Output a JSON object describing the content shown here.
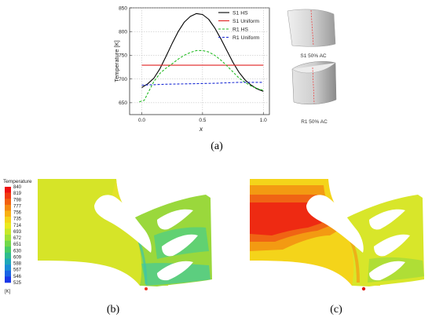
{
  "chart_data": {
    "type": "line",
    "xlabel": "x",
    "ylabel": "Temperature [K]",
    "xlim": [
      -0.1,
      1.05
    ],
    "ylim": [
      625,
      850
    ],
    "xticks": [
      "0.0",
      "0.5",
      "1.0"
    ],
    "yticks": [
      "650",
      "700",
      "750",
      "800",
      "850"
    ],
    "grid": true,
    "legend_position": "top-right",
    "series": [
      {
        "name": "S1 HS",
        "color": "#000000",
        "dash": "solid",
        "x": [
          0.0,
          0.05,
          0.1,
          0.15,
          0.2,
          0.25,
          0.3,
          0.35,
          0.4,
          0.45,
          0.5,
          0.55,
          0.6,
          0.65,
          0.7,
          0.75,
          0.8,
          0.85,
          0.9,
          0.95,
          1.0
        ],
        "y": [
          682,
          690,
          702,
          722,
          748,
          775,
          800,
          820,
          832,
          838,
          836,
          826,
          808,
          785,
          760,
          735,
          714,
          698,
          687,
          679,
          674
        ]
      },
      {
        "name": "S1 Uniform",
        "color": "#e02020",
        "dash": "solid",
        "x": [
          0.0,
          1.0
        ],
        "y": [
          729,
          729
        ]
      },
      {
        "name": "R1 HS",
        "color": "#22bb22",
        "dash": "dashed",
        "x": [
          -0.02,
          0.02,
          0.05,
          0.1,
          0.15,
          0.2,
          0.25,
          0.3,
          0.35,
          0.4,
          0.45,
          0.5,
          0.55,
          0.6,
          0.65,
          0.7,
          0.75,
          0.8,
          0.85,
          0.9,
          0.95,
          1.0
        ],
        "y": [
          652,
          655,
          670,
          695,
          712,
          723,
          732,
          742,
          750,
          756,
          760,
          760,
          757,
          750,
          740,
          728,
          715,
          702,
          693,
          685,
          680,
          676
        ]
      },
      {
        "name": "R1 Uniform",
        "color": "#1a2bd4",
        "dash": "dashed",
        "x": [
          0.0,
          0.2,
          0.4,
          0.6,
          0.8,
          1.0
        ],
        "y": [
          687,
          689,
          690,
          691,
          693,
          693
        ]
      }
    ]
  },
  "blade_labels": {
    "s1": "S1 50% AC",
    "r1": "R1 50% AC"
  },
  "panel_labels": {
    "a": "(a)",
    "b": "(b)",
    "c": "(c)"
  },
  "colorbar": {
    "title": "Temperature",
    "unit": "[K]",
    "ticks": [
      "840",
      "819",
      "798",
      "777",
      "756",
      "735",
      "714",
      "693",
      "672",
      "651",
      "630",
      "609",
      "588",
      "567",
      "546",
      "525"
    ],
    "colors": [
      "#ee1111",
      "#f03a10",
      "#f26010",
      "#f58a10",
      "#f8b012",
      "#f5d418",
      "#eaea20",
      "#c8e82a",
      "#a0e238",
      "#72d84a",
      "#48cc66",
      "#2ebc8e",
      "#1ea8b8",
      "#1a8cd6",
      "#1a64e4",
      "#1a38e8"
    ]
  }
}
